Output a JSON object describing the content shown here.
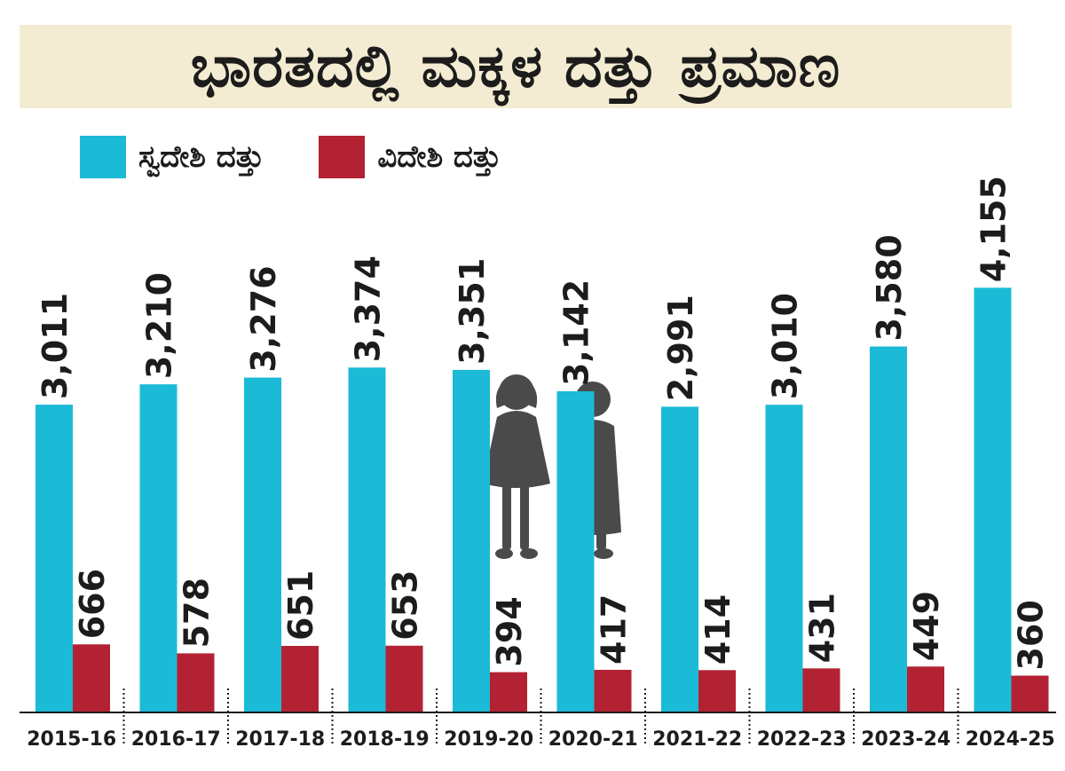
{
  "title": "ಭಾರತದಲ್ಲಿ ಮಕ್ಕಳ ದತ್ತು ಪ್ರಮಾಣ",
  "colors": {
    "domestic": "#1bbad6",
    "foreign": "#b32232",
    "title_band": "#f4ecd2",
    "text": "#1c1c1c",
    "silhouette": "#4a4a4a"
  },
  "legend": [
    {
      "label": "ಸ್ವದೇಶಿ ದತ್ತು",
      "color": "#1bbad6"
    },
    {
      "label": "ವಿದೇಶಿ ದತ್ತು",
      "color": "#b32232"
    }
  ],
  "chart_data": {
    "type": "bar",
    "title": "ಭಾರತದಲ್ಲಿ ಮಕ್ಕಳ ದತ್ತು ಪ್ರಮಾಣ",
    "categories": [
      "2015-16",
      "2016-17",
      "2017-18",
      "2018-19",
      "2019-20",
      "2020-21",
      "2021-22",
      "2022-23",
      "2023-24",
      "2024-25"
    ],
    "series": [
      {
        "name": "ಸ್ವದೇಶಿ ದತ್ತು",
        "values": [
          3011,
          3210,
          3276,
          3374,
          3351,
          3142,
          2991,
          3010,
          3580,
          4155
        ],
        "labels": [
          "3,011",
          "3,210",
          "3,276",
          "3,374",
          "3,351",
          "3,142",
          "2,991",
          "3,010",
          "3,580",
          "4,155"
        ]
      },
      {
        "name": "ವಿದೇಶಿ ದತ್ತು",
        "values": [
          666,
          578,
          651,
          653,
          394,
          417,
          414,
          431,
          449,
          360
        ],
        "labels": [
          "666",
          "578",
          "651",
          "653",
          "394",
          "417",
          "414",
          "431",
          "449",
          "360"
        ]
      }
    ],
    "ylim": [
      0,
      4800
    ],
    "grid": false,
    "legend_position": "top-left",
    "data_labels": "rotated-vertical-above-bars"
  }
}
